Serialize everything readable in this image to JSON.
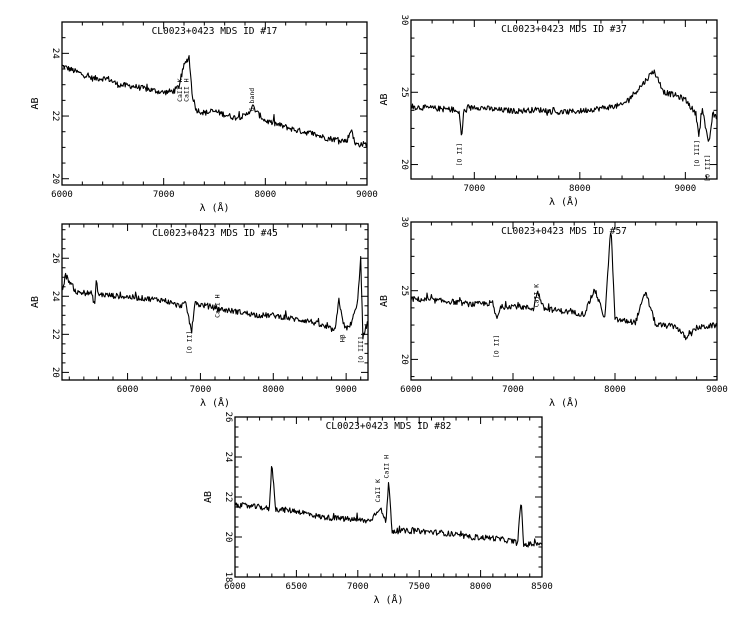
{
  "chart_data": [
    {
      "type": "line",
      "title": "CL0023+0423 MDS ID #17",
      "xlabel": "λ (Å)",
      "ylabel": "AB",
      "xlim": [
        6000,
        9000
      ],
      "ylim": [
        25,
        19.8
      ],
      "x_ticks": [
        "6000",
        "7000",
        "8000",
        "9000"
      ],
      "y_ticks": [
        "20",
        "22",
        "24"
      ],
      "x_tick_values": [
        6000,
        7000,
        8000,
        9000
      ],
      "y_tick_values": [
        20,
        22,
        24
      ],
      "grid": false,
      "annotations": [
        {
          "text": "CaII K",
          "x": 7180,
          "y": 23.2
        },
        {
          "text": "CaII H",
          "x": 7245,
          "y": 23.2
        },
        {
          "text": "G-band",
          "x": 7890,
          "y": 22.9
        }
      ],
      "series": [
        {
          "values": [
            [
              6000,
              23.6
            ],
            [
              6150,
              23.4
            ],
            [
              6300,
              23.2
            ],
            [
              6450,
              23.2
            ],
            [
              6550,
              23.0
            ],
            [
              6700,
              22.95
            ],
            [
              6850,
              22.85
            ],
            [
              7000,
              22.75
            ],
            [
              7100,
              22.8
            ],
            [
              7150,
              22.95
            ],
            [
              7200,
              23.6
            ],
            [
              7250,
              23.9
            ],
            [
              7280,
              22.7
            ],
            [
              7320,
              22.2
            ],
            [
              7400,
              22.1
            ],
            [
              7500,
              22.15
            ],
            [
              7600,
              22.05
            ],
            [
              7700,
              21.95
            ],
            [
              7800,
              22.0
            ],
            [
              7880,
              22.3
            ],
            [
              7920,
              22.1
            ],
            [
              8000,
              21.85
            ],
            [
              8150,
              21.7
            ],
            [
              8300,
              21.55
            ],
            [
              8450,
              21.45
            ],
            [
              8600,
              21.3
            ],
            [
              8700,
              21.25
            ],
            [
              8800,
              21.2
            ],
            [
              8850,
              21.6
            ],
            [
              8880,
              21.1
            ],
            [
              9000,
              21.1
            ]
          ]
        }
      ]
    },
    {
      "type": "line",
      "title": "CL0023+0423 MDS ID #37",
      "xlabel": "λ (Å)",
      "ylabel": "AB",
      "xlim": [
        6400,
        9300
      ],
      "ylim": [
        30,
        19
      ],
      "x_ticks": [
        "7000",
        "8000",
        "9000"
      ],
      "y_ticks": [
        "20",
        "25",
        "30"
      ],
      "x_tick_values": [
        7000,
        8000,
        9000
      ],
      "y_tick_values": [
        20,
        25,
        30
      ],
      "grid": false,
      "annotations": [
        {
          "text": "[O II]",
          "x": 6880,
          "y": 21.5
        },
        {
          "text": "[O III]",
          "x": 9130,
          "y": 21.7
        },
        {
          "text": "[O III]",
          "x": 9230,
          "y": 20.7
        }
      ],
      "series": [
        {
          "values": [
            [
              6400,
              24.0
            ],
            [
              6600,
              23.9
            ],
            [
              6800,
              23.8
            ],
            [
              6860,
              23.5
            ],
            [
              6880,
              21.8
            ],
            [
              6900,
              23.7
            ],
            [
              7000,
              24.0
            ],
            [
              7200,
              23.8
            ],
            [
              7400,
              23.7
            ],
            [
              7600,
              23.8
            ],
            [
              7800,
              23.6
            ],
            [
              8000,
              23.7
            ],
            [
              8200,
              23.9
            ],
            [
              8400,
              24.1
            ],
            [
              8500,
              24.8
            ],
            [
              8600,
              25.6
            ],
            [
              8700,
              26.5
            ],
            [
              8800,
              25.0
            ],
            [
              8900,
              24.8
            ],
            [
              9000,
              24.5
            ],
            [
              9100,
              23.5
            ],
            [
              9130,
              22.0
            ],
            [
              9160,
              24.0
            ],
            [
              9220,
              21.3
            ],
            [
              9260,
              23.5
            ],
            [
              9300,
              23.2
            ]
          ]
        }
      ]
    },
    {
      "type": "line",
      "title": "CL0023+0423 MDS ID #45",
      "xlabel": "λ (Å)",
      "ylabel": "AB",
      "xlim": [
        5100,
        9300
      ],
      "ylim": [
        27.8,
        19.6
      ],
      "x_ticks": [
        "6000",
        "7000",
        "8000",
        "9000"
      ],
      "y_ticks": [
        "20",
        "22",
        "24",
        "26"
      ],
      "x_tick_values": [
        6000,
        7000,
        8000,
        9000
      ],
      "y_tick_values": [
        20,
        22,
        24,
        26
      ],
      "grid": false,
      "annotations": [
        {
          "text": "[O II]",
          "x": 6880,
          "y": 22.2
        },
        {
          "text": "CaII H",
          "x": 7260,
          "y": 24.1
        },
        {
          "text": "Hβ",
          "x": 8980,
          "y": 22.0
        },
        {
          "text": "[O III]",
          "x": 9230,
          "y": 21.9
        }
      ],
      "series": [
        {
          "values": [
            [
              5100,
              24.3
            ],
            [
              5150,
              25.1
            ],
            [
              5300,
              24.2
            ],
            [
              5500,
              24.15
            ],
            [
              5550,
              23.6
            ],
            [
              5570,
              24.8
            ],
            [
              5600,
              24.1
            ],
            [
              5900,
              24.0
            ],
            [
              6200,
              23.9
            ],
            [
              6500,
              23.8
            ],
            [
              6700,
              23.5
            ],
            [
              6800,
              23.6
            ],
            [
              6880,
              22.1
            ],
            [
              6920,
              23.6
            ],
            [
              7100,
              23.5
            ],
            [
              7300,
              23.3
            ],
            [
              7500,
              23.2
            ],
            [
              7800,
              23.0
            ],
            [
              8000,
              23.0
            ],
            [
              8300,
              22.8
            ],
            [
              8500,
              22.7
            ],
            [
              8700,
              22.4
            ],
            [
              8850,
              22.2
            ],
            [
              8900,
              23.8
            ],
            [
              8980,
              22.3
            ],
            [
              9050,
              22.4
            ],
            [
              9150,
              23.5
            ],
            [
              9200,
              26.0
            ],
            [
              9230,
              21.8
            ],
            [
              9300,
              22.7
            ]
          ]
        }
      ]
    },
    {
      "type": "line",
      "title": "CL0023+0423 MDS ID #57",
      "xlabel": "λ (Å)",
      "ylabel": "AB",
      "xlim": [
        6000,
        9000
      ],
      "ylim": [
        30,
        18.5
      ],
      "x_ticks": [
        "6000",
        "7000",
        "8000",
        "9000"
      ],
      "y_ticks": [
        "20",
        "25",
        "30"
      ],
      "x_tick_values": [
        6000,
        7000,
        8000,
        9000
      ],
      "y_tick_values": [
        20,
        25,
        30
      ],
      "grid": false,
      "annotations": [
        {
          "text": "[O II]",
          "x": 6860,
          "y": 21.8
        },
        {
          "text": "CaII K",
          "x": 7250,
          "y": 25.5
        }
      ],
      "series": [
        {
          "values": [
            [
              6000,
              24.4
            ],
            [
              6200,
              24.3
            ],
            [
              6400,
              24.2
            ],
            [
              6600,
              24.0
            ],
            [
              6800,
              24.1
            ],
            [
              6840,
              22.9
            ],
            [
              6880,
              23.8
            ],
            [
              7000,
              23.9
            ],
            [
              7200,
              23.7
            ],
            [
              7240,
              25.0
            ],
            [
              7300,
              23.7
            ],
            [
              7500,
              23.5
            ],
            [
              7700,
              23.3
            ],
            [
              7800,
              25.1
            ],
            [
              7900,
              23.0
            ],
            [
              7960,
              29.7
            ],
            [
              8000,
              22.9
            ],
            [
              8200,
              22.7
            ],
            [
              8300,
              24.9
            ],
            [
              8400,
              22.5
            ],
            [
              8600,
              22.4
            ],
            [
              8700,
              21.5
            ],
            [
              8800,
              22.3
            ],
            [
              9000,
              22.5
            ]
          ]
        }
      ]
    },
    {
      "type": "line",
      "title": "CL0023+0423 MDS ID #82",
      "xlabel": "λ (Å)",
      "ylabel": "AB",
      "xlim": [
        6000,
        8500
      ],
      "ylim": [
        26,
        18
      ],
      "x_ticks": [
        "6000",
        "6500",
        "7000",
        "7500",
        "8000",
        "8500"
      ],
      "y_ticks": [
        "18",
        "20",
        "22",
        "24",
        "26"
      ],
      "x_tick_values": [
        6000,
        6500,
        7000,
        7500,
        8000,
        8500
      ],
      "y_tick_values": [
        18,
        20,
        22,
        24,
        26
      ],
      "grid": false,
      "annotations": [
        {
          "text": "CaII K",
          "x": 7180,
          "y": 22.9
        },
        {
          "text": "CaII H",
          "x": 7250,
          "y": 24.1
        }
      ],
      "series": [
        {
          "values": [
            [
              6000,
              21.6
            ],
            [
              6200,
              21.5
            ],
            [
              6280,
              21.4
            ],
            [
              6300,
              23.8
            ],
            [
              6330,
              21.4
            ],
            [
              6500,
              21.3
            ],
            [
              6700,
              21.0
            ],
            [
              6900,
              20.9
            ],
            [
              7100,
              20.8
            ],
            [
              7180,
              21.5
            ],
            [
              7230,
              20.7
            ],
            [
              7250,
              22.8
            ],
            [
              7280,
              20.3
            ],
            [
              7500,
              20.3
            ],
            [
              7700,
              20.2
            ],
            [
              7900,
              20.0
            ],
            [
              8100,
              19.95
            ],
            [
              8250,
              19.8
            ],
            [
              8300,
              19.7
            ],
            [
              8330,
              21.8
            ],
            [
              8350,
              19.6
            ],
            [
              8500,
              19.7
            ]
          ]
        }
      ]
    }
  ]
}
